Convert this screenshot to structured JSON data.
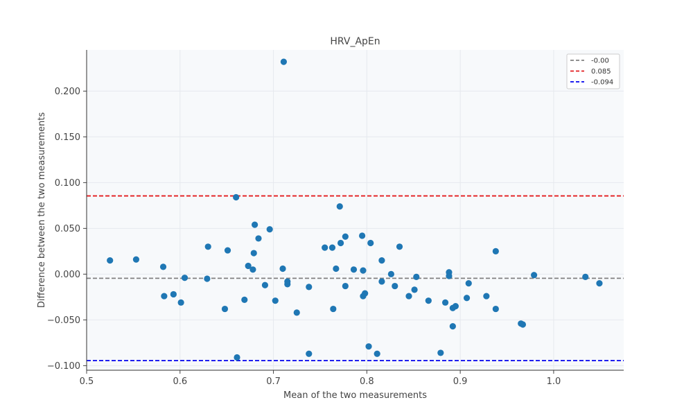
{
  "chart_data": {
    "type": "scatter",
    "title": "HRV_ApEn",
    "xlabel": "Mean of the two measurements",
    "ylabel": "Difference between the two measurements",
    "xlim": [
      0.5,
      1.075
    ],
    "ylim": [
      -0.105,
      0.245
    ],
    "xticks": [
      0.5,
      0.6,
      0.7,
      0.8,
      0.9,
      1.0
    ],
    "xtick_labels": [
      "0.5",
      "0.6",
      "0.7",
      "0.8",
      "0.9",
      "1.0"
    ],
    "yticks": [
      -0.1,
      -0.05,
      0.0,
      0.05,
      0.1,
      0.15,
      0.2
    ],
    "ytick_labels": [
      "−0.100",
      "−0.050",
      "0.000",
      "0.050",
      "0.100",
      "0.150",
      "0.200"
    ],
    "grid": true,
    "legend_position": "top-right",
    "point_color": "#1f77b4",
    "reference_lines": [
      {
        "label": "-0.00",
        "y": -0.0045,
        "color": "#808080"
      },
      {
        "label": "0.085",
        "y": 0.0855,
        "color": "#e31a1c"
      },
      {
        "label": "-0.094",
        "y": -0.0945,
        "color": "#0000ee"
      }
    ],
    "points": [
      {
        "x": 0.525,
        "y": 0.015
      },
      {
        "x": 0.553,
        "y": 0.016
      },
      {
        "x": 0.582,
        "y": 0.008
      },
      {
        "x": 0.583,
        "y": -0.024
      },
      {
        "x": 0.593,
        "y": -0.022
      },
      {
        "x": 0.601,
        "y": -0.031
      },
      {
        "x": 0.605,
        "y": -0.004
      },
      {
        "x": 0.629,
        "y": -0.005
      },
      {
        "x": 0.63,
        "y": 0.03
      },
      {
        "x": 0.648,
        "y": -0.038
      },
      {
        "x": 0.651,
        "y": 0.026
      },
      {
        "x": 0.66,
        "y": 0.084
      },
      {
        "x": 0.661,
        "y": -0.091
      },
      {
        "x": 0.669,
        "y": -0.028
      },
      {
        "x": 0.673,
        "y": 0.009
      },
      {
        "x": 0.678,
        "y": 0.005
      },
      {
        "x": 0.679,
        "y": 0.023
      },
      {
        "x": 0.68,
        "y": 0.054
      },
      {
        "x": 0.684,
        "y": 0.039
      },
      {
        "x": 0.691,
        "y": -0.012
      },
      {
        "x": 0.696,
        "y": 0.049
      },
      {
        "x": 0.702,
        "y": -0.029
      },
      {
        "x": 0.71,
        "y": 0.006
      },
      {
        "x": 0.711,
        "y": 0.232
      },
      {
        "x": 0.715,
        "y": -0.008
      },
      {
        "x": 0.715,
        "y": -0.011
      },
      {
        "x": 0.725,
        "y": -0.042
      },
      {
        "x": 0.738,
        "y": -0.014
      },
      {
        "x": 0.738,
        "y": -0.087
      },
      {
        "x": 0.755,
        "y": 0.029
      },
      {
        "x": 0.763,
        "y": 0.029
      },
      {
        "x": 0.764,
        "y": -0.038
      },
      {
        "x": 0.767,
        "y": 0.006
      },
      {
        "x": 0.771,
        "y": 0.074
      },
      {
        "x": 0.772,
        "y": 0.034
      },
      {
        "x": 0.777,
        "y": 0.041
      },
      {
        "x": 0.777,
        "y": -0.013
      },
      {
        "x": 0.786,
        "y": 0.005
      },
      {
        "x": 0.795,
        "y": 0.042
      },
      {
        "x": 0.796,
        "y": 0.004
      },
      {
        "x": 0.796,
        "y": -0.024
      },
      {
        "x": 0.798,
        "y": -0.021
      },
      {
        "x": 0.802,
        "y": -0.079
      },
      {
        "x": 0.804,
        "y": 0.034
      },
      {
        "x": 0.811,
        "y": -0.087
      },
      {
        "x": 0.816,
        "y": 0.015
      },
      {
        "x": 0.816,
        "y": -0.008
      },
      {
        "x": 0.826,
        "y": 0.0
      },
      {
        "x": 0.83,
        "y": -0.013
      },
      {
        "x": 0.835,
        "y": 0.03
      },
      {
        "x": 0.845,
        "y": -0.024
      },
      {
        "x": 0.851,
        "y": -0.017
      },
      {
        "x": 0.853,
        "y": -0.003
      },
      {
        "x": 0.866,
        "y": -0.029
      },
      {
        "x": 0.879,
        "y": -0.086
      },
      {
        "x": 0.884,
        "y": -0.031
      },
      {
        "x": 0.888,
        "y": 0.002
      },
      {
        "x": 0.888,
        "y": -0.002
      },
      {
        "x": 0.892,
        "y": -0.057
      },
      {
        "x": 0.892,
        "y": -0.037
      },
      {
        "x": 0.895,
        "y": -0.035
      },
      {
        "x": 0.907,
        "y": -0.026
      },
      {
        "x": 0.909,
        "y": -0.01
      },
      {
        "x": 0.928,
        "y": -0.024
      },
      {
        "x": 0.938,
        "y": 0.025
      },
      {
        "x": 0.938,
        "y": -0.038
      },
      {
        "x": 0.965,
        "y": -0.054
      },
      {
        "x": 0.967,
        "y": -0.055
      },
      {
        "x": 0.979,
        "y": -0.001
      },
      {
        "x": 1.034,
        "y": -0.003
      },
      {
        "x": 1.049,
        "y": -0.01
      }
    ]
  }
}
